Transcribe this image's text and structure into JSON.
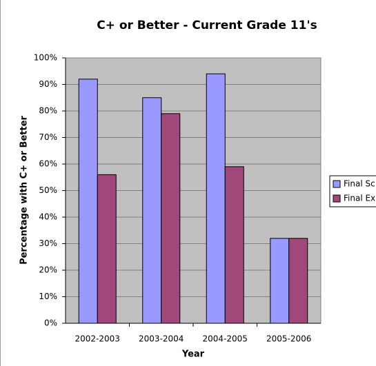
{
  "chart_data": {
    "type": "bar",
    "title": "C+ or Better - Current Grade 11's",
    "y_label": "Percentage with C+ or Better",
    "x_label": "Year",
    "categories": [
      "2002-2003",
      "2003-2004",
      "2004-2005",
      "2005-2006"
    ],
    "series": [
      {
        "name": "Final Sc",
        "color": "#9999ff",
        "values": [
          92,
          85,
          94,
          32
        ]
      },
      {
        "name": "Final Ex",
        "color": "#a0487a",
        "values": [
          56,
          79,
          59,
          32
        ]
      }
    ],
    "ylim": [
      0,
      100
    ],
    "yticks": [
      {
        "value": 0,
        "label": "0%"
      },
      {
        "value": 10,
        "label": "10%"
      },
      {
        "value": 20,
        "label": "20%"
      },
      {
        "value": 30,
        "label": "30%"
      },
      {
        "value": 40,
        "label": "40%"
      },
      {
        "value": 50,
        "label": "50%"
      },
      {
        "value": 60,
        "label": "60%"
      },
      {
        "value": 70,
        "label": "70%"
      },
      {
        "value": 80,
        "label": "80%"
      },
      {
        "value": 90,
        "label": "90%"
      },
      {
        "value": 100,
        "label": "100%"
      }
    ],
    "grid": true,
    "legend": "right"
  }
}
